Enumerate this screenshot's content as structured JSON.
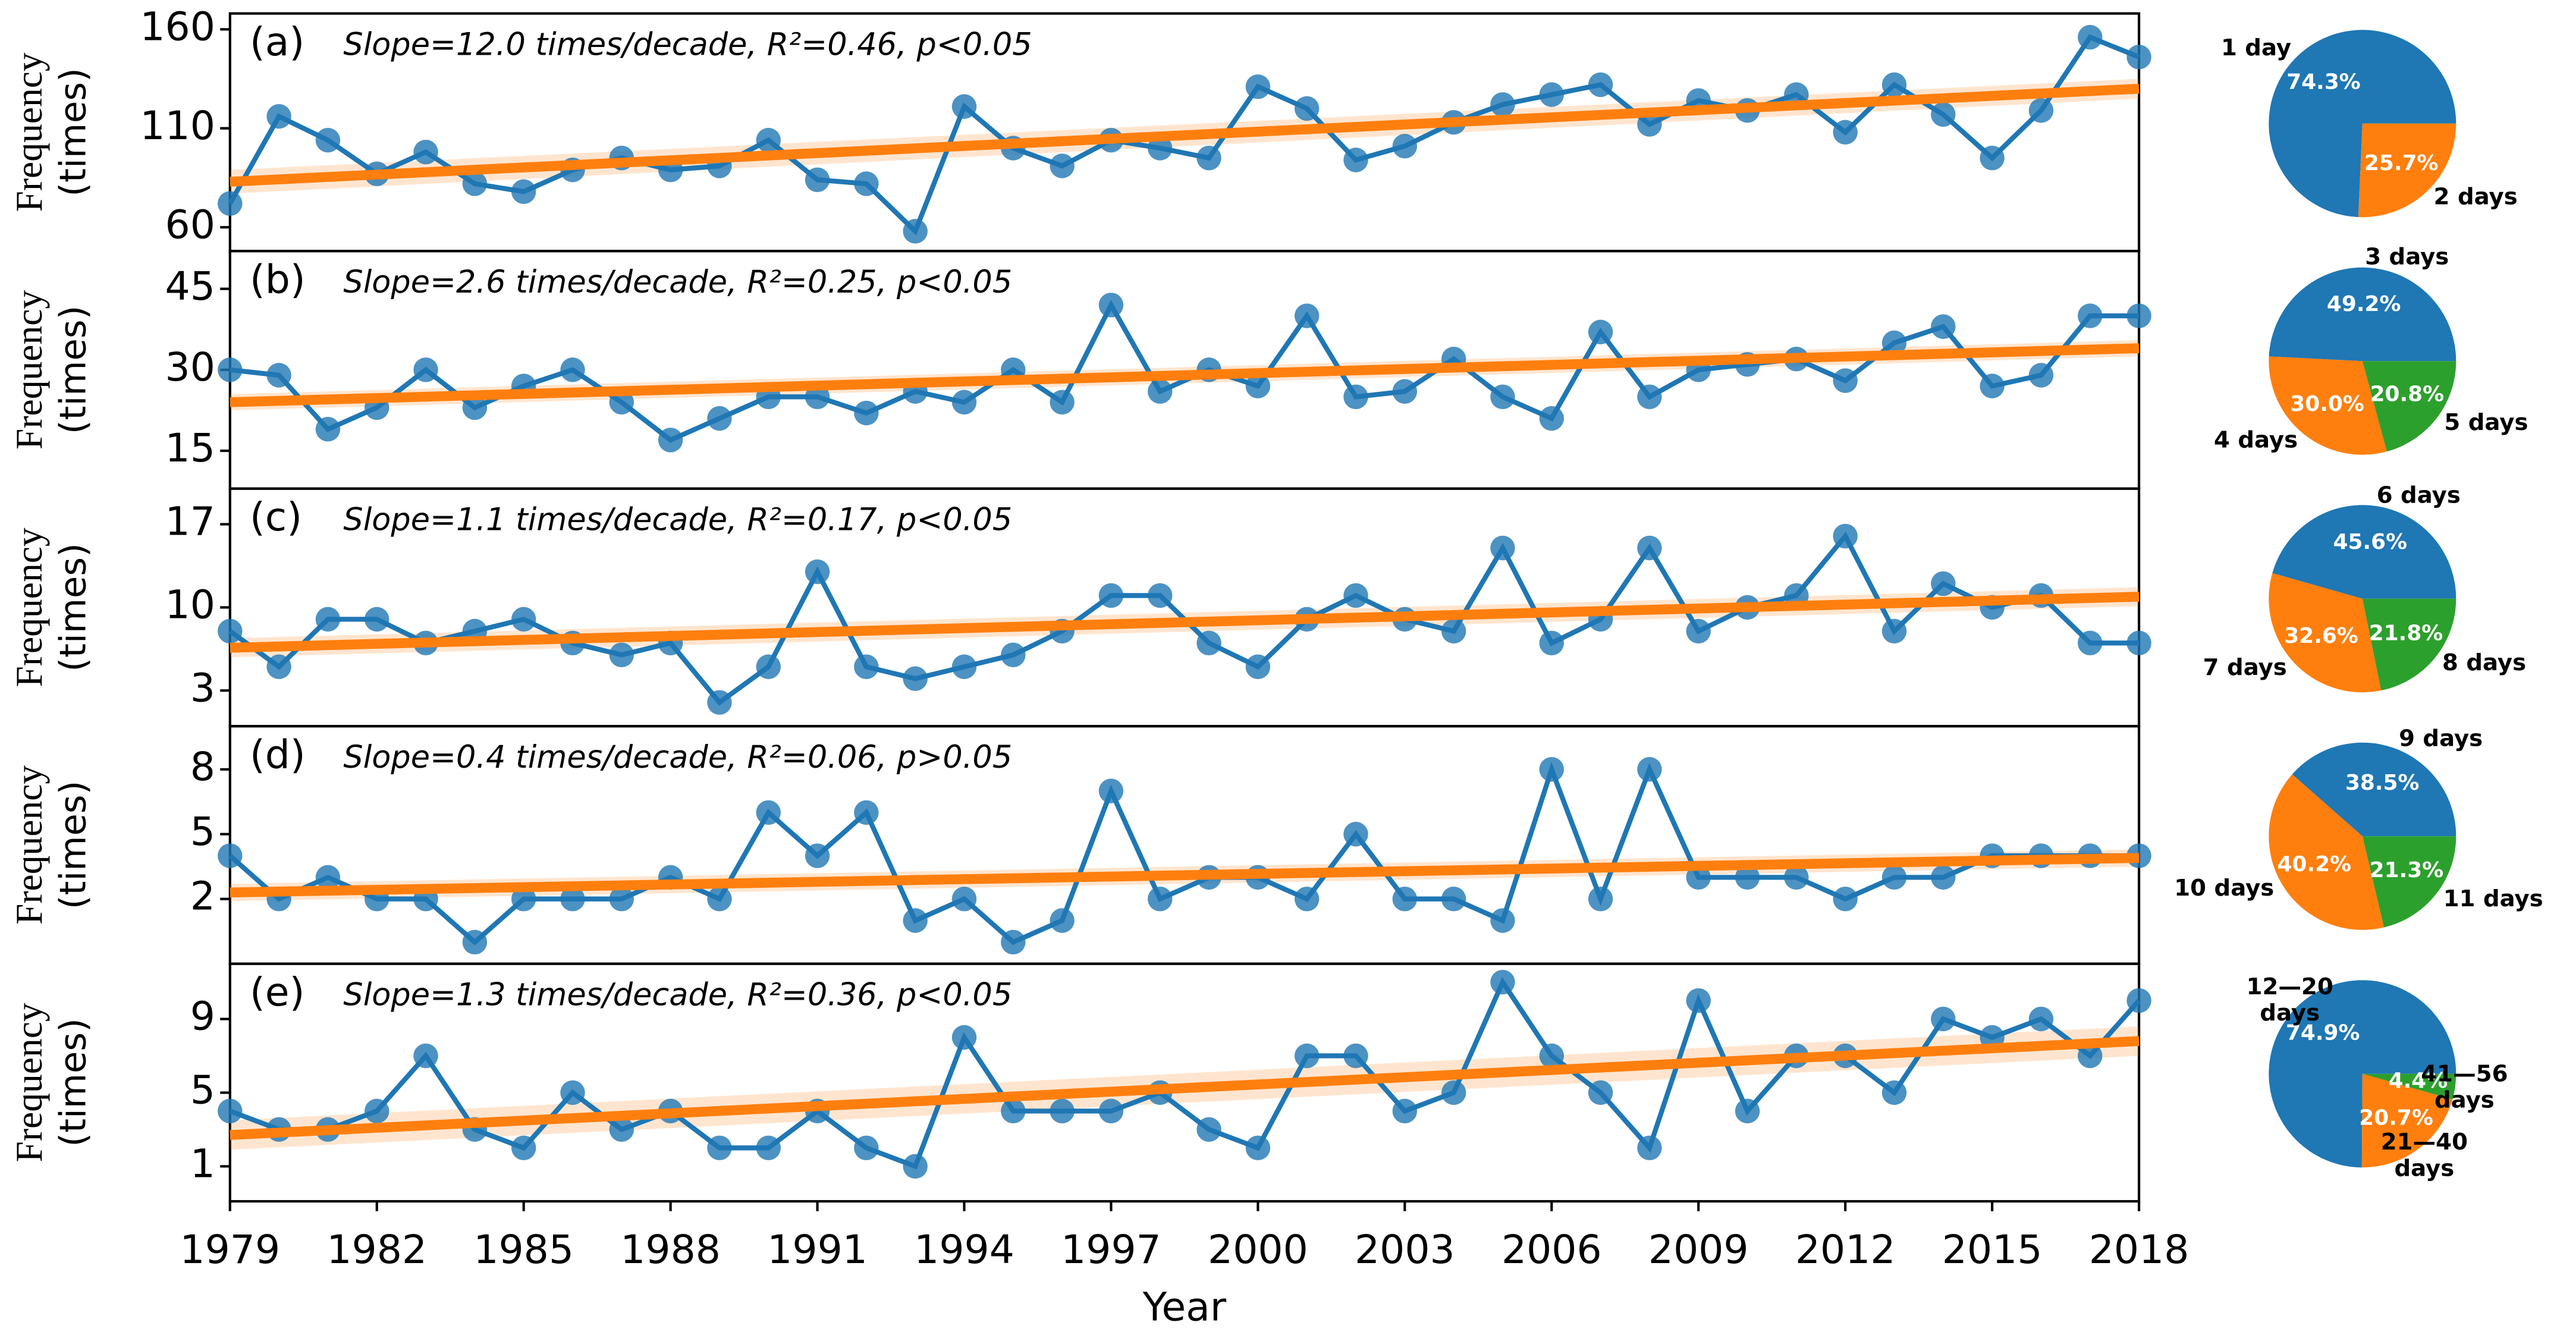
{
  "chart_data": [
    {
      "type": "line",
      "label": "(a)",
      "annotation": "Slope=12.0 times/decade, R²=0.46, p<0.05",
      "ylabel": [
        "Frequency",
        "(times)"
      ],
      "color": "#1f77b4",
      "x": [
        1979,
        1980,
        1981,
        1982,
        1983,
        1984,
        1985,
        1986,
        1987,
        1988,
        1989,
        1990,
        1991,
        1992,
        1993,
        1994,
        1995,
        1996,
        1997,
        1998,
        1999,
        2000,
        2001,
        2002,
        2003,
        2004,
        2005,
        2006,
        2007,
        2008,
        2009,
        2010,
        2011,
        2012,
        2013,
        2014,
        2015,
        2016,
        2017,
        2018
      ],
      "values": [
        72,
        116,
        104,
        87,
        98,
        82,
        78,
        89,
        95,
        89,
        91,
        104,
        84,
        82,
        58,
        121,
        100,
        91,
        104,
        100,
        95,
        131,
        120,
        94,
        101,
        113,
        122,
        127,
        132,
        112,
        124,
        119,
        127,
        108,
        132,
        117,
        95,
        119,
        156,
        146
      ],
      "trend": {
        "color": "#ff7f0e",
        "x": [
          1979,
          2018
        ],
        "values": [
          83,
          130
        ],
        "lower": [
          77,
          125
        ],
        "upper": [
          89,
          135
        ]
      },
      "xlim": [
        1979,
        2018
      ],
      "ylim": [
        48,
        168
      ],
      "yticks": [
        60,
        110,
        160
      ]
    },
    {
      "type": "line",
      "label": "(b)",
      "annotation": "Slope=2.6 times/decade, R²=0.25, p<0.05",
      "ylabel": [
        "Frequency",
        "(times)"
      ],
      "color": "#1f77b4",
      "x": [
        1979,
        1980,
        1981,
        1982,
        1983,
        1984,
        1985,
        1986,
        1987,
        1988,
        1989,
        1990,
        1991,
        1992,
        1993,
        1994,
        1995,
        1996,
        1997,
        1998,
        1999,
        2000,
        2001,
        2002,
        2003,
        2004,
        2005,
        2006,
        2007,
        2008,
        2009,
        2010,
        2011,
        2012,
        2013,
        2014,
        2015,
        2016,
        2017,
        2018
      ],
      "values": [
        30,
        29,
        19,
        23,
        30,
        23,
        27,
        30,
        24,
        17,
        21,
        25,
        25,
        22,
        26,
        24,
        30,
        24,
        42,
        26,
        30,
        27,
        40,
        25,
        26,
        32,
        25,
        21,
        37,
        25,
        30,
        31,
        32,
        28,
        35,
        38,
        27,
        29,
        40,
        40
      ],
      "trend": {
        "color": "#ff7f0e",
        "x": [
          1979,
          2018
        ],
        "values": [
          24,
          34
        ],
        "lower": [
          22.5,
          32.5
        ],
        "upper": [
          25.5,
          35.5
        ]
      },
      "xlim": [
        1979,
        2018
      ],
      "ylim": [
        8,
        52
      ],
      "yticks": [
        15,
        30,
        45
      ]
    },
    {
      "type": "line",
      "label": "(c)",
      "annotation": "Slope=1.1 times/decade, R²=0.17, p<0.05",
      "ylabel": [
        "Frequency",
        "(times)"
      ],
      "color": "#1f77b4",
      "x": [
        1979,
        1980,
        1981,
        1982,
        1983,
        1984,
        1985,
        1986,
        1987,
        1988,
        1989,
        1990,
        1991,
        1992,
        1993,
        1994,
        1995,
        1996,
        1997,
        1998,
        1999,
        2000,
        2001,
        2002,
        2003,
        2004,
        2005,
        2006,
        2007,
        2008,
        2009,
        2010,
        2011,
        2012,
        2013,
        2014,
        2015,
        2016,
        2017,
        2018
      ],
      "values": [
        8,
        5,
        9,
        9,
        7,
        8,
        9,
        7,
        6,
        7,
        2,
        5,
        13,
        5,
        4,
        5,
        6,
        8,
        11,
        11,
        7,
        5,
        9,
        11,
        9,
        8,
        15,
        7,
        9,
        15,
        8,
        10,
        11,
        16,
        8,
        12,
        10,
        11,
        7,
        7
      ],
      "trend": {
        "color": "#ff7f0e",
        "x": [
          1979,
          2018
        ],
        "values": [
          6.6,
          10.9
        ],
        "lower": [
          5.8,
          10.1
        ],
        "upper": [
          7.4,
          11.7
        ]
      },
      "xlim": [
        1979,
        2018
      ],
      "ylim": [
        0,
        20
      ],
      "yticks": [
        3,
        10,
        17
      ]
    },
    {
      "type": "line",
      "label": "(d)",
      "annotation": "Slope=0.4 times/decade, R²=0.06, p>0.05",
      "ylabel": [
        "Frequency",
        "(times)"
      ],
      "color": "#1f77b4",
      "x": [
        1979,
        1980,
        1981,
        1982,
        1983,
        1984,
        1985,
        1986,
        1987,
        1988,
        1989,
        1990,
        1991,
        1992,
        1993,
        1994,
        1995,
        1996,
        1997,
        1998,
        1999,
        2000,
        2001,
        2002,
        2003,
        2004,
        2005,
        2006,
        2007,
        2008,
        2009,
        2010,
        2011,
        2012,
        2013,
        2014,
        2015,
        2016,
        2017,
        2018
      ],
      "values": [
        4,
        2,
        3,
        2,
        2,
        0,
        2,
        2,
        2,
        3,
        2,
        6,
        4,
        6,
        1,
        2,
        0,
        1,
        7,
        2,
        3,
        3,
        2,
        5,
        2,
        2,
        1,
        8,
        2,
        8,
        3,
        3,
        3,
        2,
        3,
        3,
        4,
        4,
        4,
        4
      ],
      "trend": {
        "color": "#ff7f0e",
        "x": [
          1979,
          2018
        ],
        "values": [
          2.3,
          3.9
        ],
        "lower": [
          1.9,
          3.5
        ],
        "upper": [
          2.7,
          4.3
        ]
      },
      "xlim": [
        1979,
        2018
      ],
      "ylim": [
        -1,
        10
      ],
      "yticks": [
        2,
        5,
        8
      ]
    },
    {
      "type": "line",
      "label": "(e)",
      "annotation": "Slope=1.3 times/decade, R²=0.36, p<0.05",
      "ylabel": [
        "Frequency",
        "(times)"
      ],
      "xlabel": "Year",
      "color": "#1f77b4",
      "x": [
        1979,
        1980,
        1981,
        1982,
        1983,
        1984,
        1985,
        1986,
        1987,
        1988,
        1989,
        1990,
        1991,
        1992,
        1993,
        1994,
        1995,
        1996,
        1997,
        1998,
        1999,
        2000,
        2001,
        2002,
        2003,
        2004,
        2005,
        2006,
        2007,
        2008,
        2009,
        2010,
        2011,
        2012,
        2013,
        2014,
        2015,
        2016,
        2017,
        2018
      ],
      "values": [
        4,
        3,
        3,
        4,
        7,
        3,
        2,
        5,
        3,
        4,
        2,
        2,
        4,
        2,
        1,
        8,
        4,
        4,
        4,
        5,
        3,
        2,
        7,
        7,
        4,
        5,
        11,
        7,
        5,
        2,
        10,
        4,
        7,
        7,
        5,
        9,
        8,
        9,
        7,
        10
      ],
      "trend": {
        "color": "#ff7f0e",
        "x": [
          1979,
          2018
        ],
        "values": [
          2.7,
          7.8
        ],
        "lower": [
          1.9,
          7.0
        ],
        "upper": [
          3.5,
          8.6
        ]
      },
      "xlim": [
        1979,
        2018
      ],
      "ylim": [
        -0.9,
        12
      ],
      "yticks": [
        1,
        5,
        9
      ],
      "xticks": [
        1979,
        1982,
        1985,
        1988,
        1991,
        1994,
        1997,
        2000,
        2003,
        2006,
        2009,
        2012,
        2015,
        2018
      ]
    },
    {
      "type": "pie",
      "labels": [
        "1 day",
        "2 days"
      ],
      "values": [
        74.3,
        25.7
      ],
      "value_labels": [
        "74.3%",
        "25.7%"
      ],
      "colors": [
        "#1f77b4",
        "#ff7f0e"
      ]
    },
    {
      "type": "pie",
      "labels": [
        "3 days",
        "4 days",
        "5 days"
      ],
      "values": [
        49.2,
        30.0,
        20.8
      ],
      "value_labels": [
        "49.2%",
        "30.0%",
        "20.8%"
      ],
      "colors": [
        "#1f77b4",
        "#ff7f0e",
        "#2ca02c"
      ]
    },
    {
      "type": "pie",
      "labels": [
        "6 days",
        "7 days",
        "8 days"
      ],
      "values": [
        45.6,
        32.6,
        21.8
      ],
      "value_labels": [
        "45.6%",
        "32.6%",
        "21.8%"
      ],
      "colors": [
        "#1f77b4",
        "#ff7f0e",
        "#2ca02c"
      ]
    },
    {
      "type": "pie",
      "labels": [
        "9 days",
        "10 days",
        "11 days"
      ],
      "values": [
        38.5,
        40.2,
        21.3
      ],
      "value_labels": [
        "38.5%",
        "40.2%",
        "21.3%"
      ],
      "colors": [
        "#1f77b4",
        "#ff7f0e",
        "#2ca02c"
      ]
    },
    {
      "type": "pie",
      "labels": [
        "12—20\ndays",
        "21—40\ndays",
        "41—56\ndays"
      ],
      "values": [
        74.9,
        20.7,
        4.4
      ],
      "value_labels": [
        "74.9%",
        "20.7%",
        "4.4%"
      ],
      "colors": [
        "#1f77b4",
        "#ff7f0e",
        "#2ca02c"
      ]
    }
  ]
}
